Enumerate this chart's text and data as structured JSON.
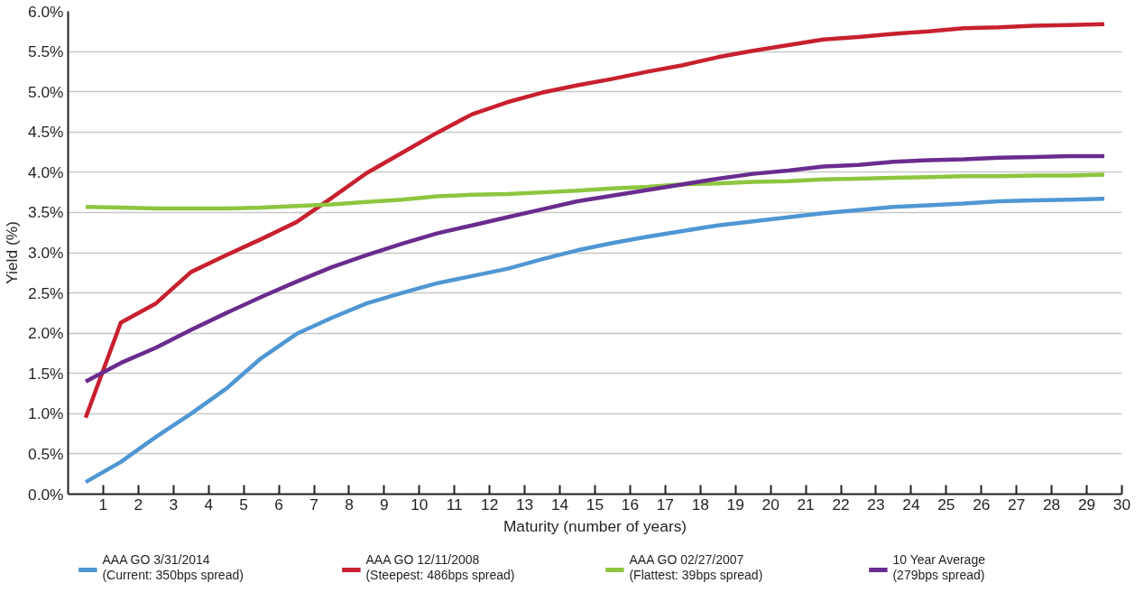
{
  "chart_data": {
    "type": "line",
    "xlabel": "Maturity (number of years)",
    "ylabel": "Yield (%)",
    "x": [
      0.5,
      1.5,
      2.5,
      3.5,
      4.5,
      5.5,
      6.5,
      7.5,
      8.5,
      9.5,
      10.5,
      11.5,
      12.5,
      13.5,
      14.5,
      15.5,
      16.5,
      17.5,
      18.5,
      19.5,
      20.5,
      21.5,
      22.5,
      23.5,
      24.5,
      25.5,
      26.5,
      27.5,
      28.5,
      29.5
    ],
    "series": [
      {
        "name": "AAA GO 3/31/2014\n(Current: 350bps spread)",
        "color": "#4f97d3",
        "values": [
          0.15,
          0.4,
          0.71,
          1.0,
          1.31,
          1.69,
          1.99,
          2.19,
          2.37,
          2.5,
          2.62,
          2.71,
          2.8,
          2.92,
          3.03,
          3.12,
          3.2,
          3.27,
          3.34,
          3.39,
          3.44,
          3.49,
          3.53,
          3.57,
          3.59,
          3.61,
          3.64,
          3.65,
          3.66,
          3.67
        ]
      },
      {
        "name": "AAA GO 12/11/2008\n(Steepest: 486bps spread)",
        "color": "#c8202f",
        "values": [
          0.95,
          2.13,
          2.37,
          2.76,
          2.97,
          3.17,
          3.38,
          3.68,
          3.99,
          4.24,
          4.49,
          4.72,
          4.87,
          4.99,
          5.08,
          5.16,
          5.25,
          5.33,
          5.43,
          5.51,
          5.58,
          5.65,
          5.68,
          5.72,
          5.75,
          5.79,
          5.8,
          5.82,
          5.83,
          5.84
        ]
      },
      {
        "name": "AAA GO 02/27/2007\n(Flattest: 39bps spread)",
        "color": "#8dc63f",
        "values": [
          3.57,
          3.56,
          3.55,
          3.55,
          3.55,
          3.56,
          3.58,
          3.6,
          3.63,
          3.66,
          3.7,
          3.72,
          3.73,
          3.75,
          3.77,
          3.8,
          3.82,
          3.85,
          3.86,
          3.88,
          3.89,
          3.91,
          3.92,
          3.93,
          3.94,
          3.95,
          3.95,
          3.96,
          3.96,
          3.97
        ]
      },
      {
        "name": "10 Year Average\n(279bps spread)",
        "color": "#6a2c8e",
        "values": [
          1.4,
          1.63,
          1.82,
          2.04,
          2.25,
          2.45,
          2.64,
          2.82,
          2.97,
          3.11,
          3.24,
          3.34,
          3.44,
          3.54,
          3.64,
          3.71,
          3.78,
          3.85,
          3.92,
          3.98,
          4.02,
          4.07,
          4.09,
          4.13,
          4.15,
          4.16,
          4.18,
          4.19,
          4.2,
          4.2
        ]
      }
    ],
    "xlim": [
      0,
      30
    ],
    "xticks": [
      1,
      2,
      3,
      4,
      5,
      6,
      7,
      8,
      9,
      10,
      11,
      12,
      13,
      14,
      15,
      16,
      17,
      18,
      19,
      20,
      21,
      22,
      23,
      24,
      25,
      26,
      27,
      28,
      29,
      30
    ],
    "ylim": [
      0,
      6
    ],
    "yticks": [
      {
        "value": 0,
        "label": "0.0%"
      },
      {
        "value": 0.5,
        "label": "0.5%"
      },
      {
        "value": 1,
        "label": "1.0%"
      },
      {
        "value": 1.5,
        "label": "1.5%"
      },
      {
        "value": 2,
        "label": "2.0%"
      },
      {
        "value": 2.5,
        "label": "2.5%"
      },
      {
        "value": 3,
        "label": "3.0%"
      },
      {
        "value": 3.5,
        "label": "3.5%"
      },
      {
        "value": 4,
        "label": "4.0%"
      },
      {
        "value": 4.5,
        "label": "4.5%"
      },
      {
        "value": 5,
        "label": "5.0%"
      },
      {
        "value": 5.5,
        "label": "5.5%"
      },
      {
        "value": 6,
        "label": "6.0%"
      }
    ],
    "grid": "y",
    "legend": "bottom",
    "marker": "none",
    "line_style": "solid"
  }
}
